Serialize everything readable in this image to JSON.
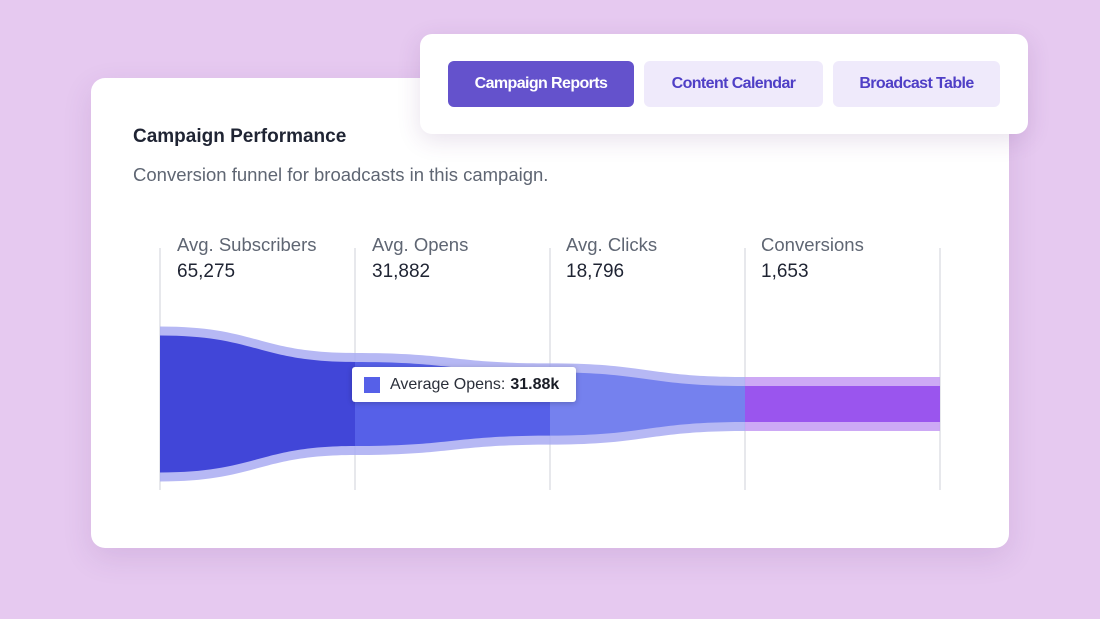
{
  "card": {
    "title": "Campaign Performance",
    "subtitle": "Conversion funnel for broadcasts in this campaign."
  },
  "tabs": [
    {
      "label": "Campaign Reports",
      "active": true
    },
    {
      "label": "Content Calendar",
      "active": false
    },
    {
      "label": "Broadcast Table",
      "active": false
    }
  ],
  "chart_data": {
    "type": "area",
    "title": "",
    "categories": [
      "Avg. Subscribers",
      "Avg. Opens",
      "Avg. Clicks",
      "Conversions"
    ],
    "values": [
      65275,
      31882,
      18796,
      1653
    ],
    "value_labels": [
      "65,275",
      "31,882",
      "18,796",
      "1,653"
    ],
    "tooltip": {
      "series": "Average Opens:",
      "value": "31.88k"
    },
    "colors": {
      "subscribers": "#4146d8",
      "opens": "#5660e8",
      "clicks": "#7581ee",
      "conversions": "#9a55ee",
      "band": "#a9acf2",
      "conversion_band": "#c49af3"
    }
  }
}
